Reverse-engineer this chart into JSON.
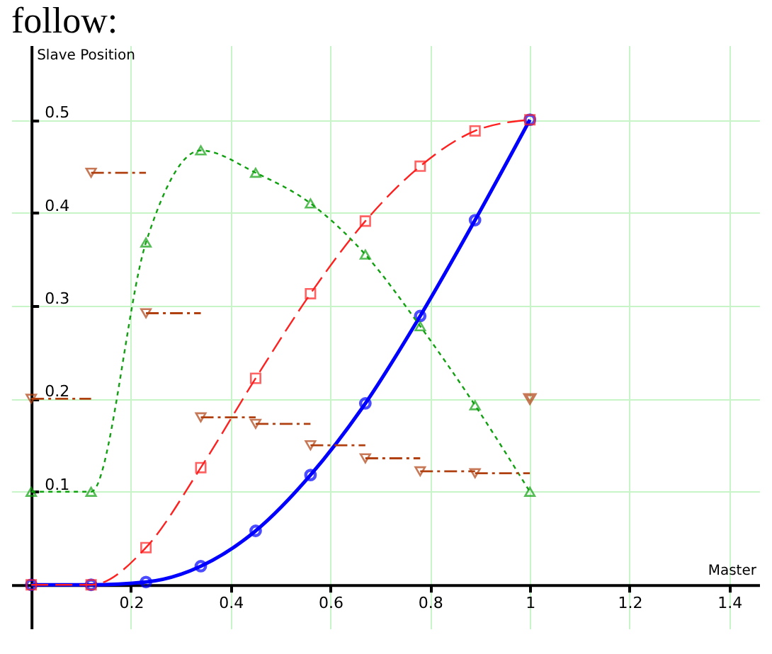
{
  "chart_data": {
    "type": "line",
    "title": "follow:",
    "xlabel": "Master",
    "ylabel": "Slave Position",
    "x": [
      0,
      0.12,
      0.23,
      0.34,
      0.45,
      0.56,
      0.67,
      0.78,
      0.89,
      1
    ],
    "series": [
      {
        "color": "#0000ff",
        "marker": "circle",
        "line_style": "solid",
        "values": [
          0,
          0,
          0.003,
          0.02,
          0.058,
          0.118,
          0.195,
          0.289,
          0.392,
          0.5
        ]
      },
      {
        "color": "#ff2020",
        "marker": "square",
        "line_style": "dashed",
        "values": [
          0,
          0,
          0.04,
          0.126,
          0.222,
          0.313,
          0.391,
          0.45,
          0.488,
          0.5
        ]
      },
      {
        "color": "#10a010",
        "marker": "triangle",
        "line_style": "dotted",
        "values": [
          0.1,
          0.1,
          0.368,
          0.467,
          0.443,
          0.41,
          0.355,
          0.278,
          0.193,
          0.1
        ]
      },
      {
        "type": "step",
        "color": "#b04010",
        "marker": "triangle-down",
        "line_style": "dashdot",
        "values": [
          0.2,
          0.443,
          0.292,
          0.18,
          0.173,
          0.15,
          0.136,
          0.122,
          0.12,
          0.12
        ]
      },
      {
        "type": "scatter",
        "color": "#b04010",
        "marker": "triangle-down",
        "x": [
          1
        ],
        "values": [
          0.2
        ]
      }
    ],
    "xlim": [
      -0.04,
      1.46
    ],
    "ylim": [
      -0.047,
      0.58
    ],
    "xticks": [
      0.2,
      0.4,
      0.6,
      0.8,
      1,
      1.2,
      1.4
    ],
    "yticks": [
      0.1,
      0.2,
      0.3,
      0.4,
      0.5
    ],
    "grid": true
  }
}
